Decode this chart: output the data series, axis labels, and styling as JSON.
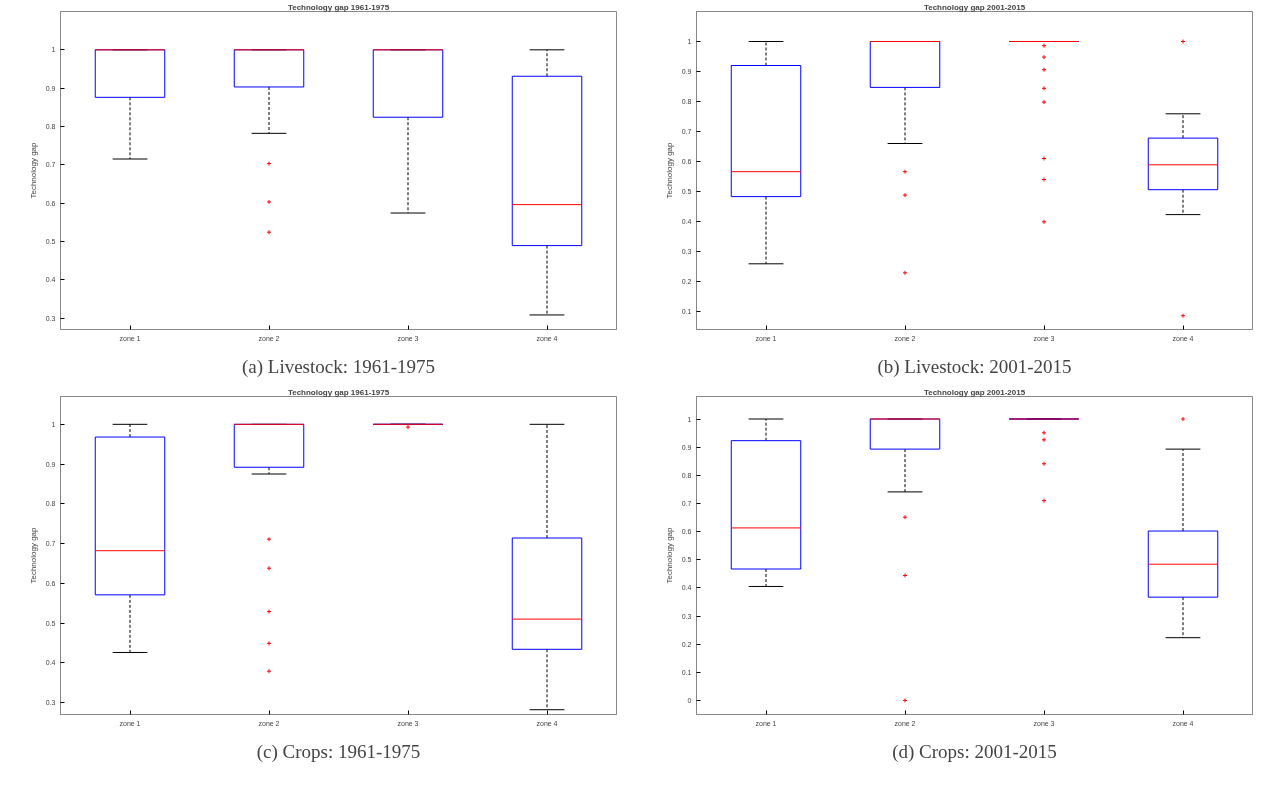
{
  "chart_data": [
    {
      "type": "box",
      "title": "Technology gap 1961-1975",
      "ylabel": "Technology gap",
      "categories": [
        "zone 1",
        "zone 2",
        "zone 3",
        "zone 4"
      ],
      "ylim": [
        0.27,
        1.1
      ],
      "yticks": [
        0.3,
        0.4,
        0.5,
        0.6,
        0.7,
        0.8,
        0.9,
        1
      ],
      "grid": false,
      "annotations": [
        "(a) Livestock: 1961-1975"
      ],
      "series": [
        {
          "color": "#0000ff",
          "boxes": [
            {
              "low": 0.715,
              "q1": 0.876,
              "median": 1,
              "q3": 1,
              "high": 1
            },
            {
              "low": 0.782,
              "q1": 0.903,
              "median": 1,
              "q3": 1,
              "high": 1,
              "outliers": [
                0.703,
                0.603,
                0.524
              ]
            },
            {
              "low": 0.574,
              "q1": 0.824,
              "median": 1,
              "q3": 1,
              "high": 1
            },
            {
              "low": 0.308,
              "q1": 0.489,
              "median": 0.596,
              "q3": 0.931,
              "high": 1
            }
          ]
        }
      ]
    },
    {
      "type": "box",
      "title": "Technology gap 2001-2015",
      "ylabel": "Technology gap",
      "categories": [
        "zone 1",
        "zone 2",
        "zone 3",
        "zone 4"
      ],
      "ylim": [
        0.04,
        1.1
      ],
      "yticks": [
        0.1,
        0.2,
        0.3,
        0.4,
        0.5,
        0.6,
        0.7,
        0.8,
        0.9,
        1
      ],
      "grid": false,
      "annotations": [
        "(b) Livestock: 2001-2015"
      ],
      "series": [
        {
          "color": "#0000ff",
          "boxes": [
            {
              "low": 0.259,
              "q1": 0.483,
              "median": 0.566,
              "q3": 0.92,
              "high": 1
            },
            {
              "low": 0.66,
              "q1": 0.847,
              "median": 1,
              "q3": 1,
              "high": 1,
              "outliers": [
                0.566,
                0.488,
                0.229
              ]
            },
            {
              "low": 1,
              "q1": 1,
              "median": 1,
              "q3": 1,
              "high": 1,
              "outliers": [
                0.986,
                0.948,
                0.906,
                0.844,
                0.798,
                0.61,
                0.54,
                0.399
              ]
            },
            {
              "low": 0.423,
              "q1": 0.506,
              "median": 0.589,
              "q3": 0.678,
              "high": 0.759,
              "outliers": [
                1,
                0.086
              ]
            }
          ]
        }
      ]
    },
    {
      "type": "box",
      "title": "Technology gap 1961-1975",
      "ylabel": "Technology gap",
      "categories": [
        "zone 1",
        "zone 2",
        "zone 3",
        "zone 4"
      ],
      "ylim": [
        0.27,
        1.07
      ],
      "yticks": [
        0.3,
        0.4,
        0.5,
        0.6,
        0.7,
        0.8,
        0.9,
        1
      ],
      "grid": false,
      "annotations": [
        "(c) Crops: 1961-1975"
      ],
      "series": [
        {
          "color": "#0000ff",
          "boxes": [
            {
              "low": 0.426,
              "q1": 0.571,
              "median": 0.682,
              "q3": 0.968,
              "high": 1
            },
            {
              "low": 0.875,
              "q1": 0.892,
              "median": 1,
              "q3": 1,
              "high": 1,
              "outliers": [
                0.711,
                0.638,
                0.529,
                0.449,
                0.379
              ]
            },
            {
              "low": 1,
              "q1": 1,
              "median": 1,
              "q3": 1,
              "high": 1,
              "outliers": [
                0.993
              ]
            },
            {
              "low": 0.282,
              "q1": 0.434,
              "median": 0.51,
              "q3": 0.714,
              "high": 1
            }
          ]
        }
      ]
    },
    {
      "type": "box",
      "title": "Technology gap 2001-2015",
      "ylabel": "Technology gap",
      "categories": [
        "zone 1",
        "zone 2",
        "zone 3",
        "zone 4"
      ],
      "ylim": [
        -0.05,
        1.08
      ],
      "yticks": [
        0,
        0.1,
        0.2,
        0.3,
        0.4,
        0.5,
        0.6,
        0.7,
        0.8,
        0.9,
        1
      ],
      "grid": false,
      "annotations": [
        "(d) Crops: 2001-2015"
      ],
      "series": [
        {
          "color": "#0000ff",
          "boxes": [
            {
              "low": 0.405,
              "q1": 0.467,
              "median": 0.613,
              "q3": 0.923,
              "high": 1
            },
            {
              "low": 0.741,
              "q1": 0.893,
              "median": 1,
              "q3": 1,
              "high": 1,
              "outliers": [
                0.651,
                0.444,
                0
              ]
            },
            {
              "low": 1,
              "q1": 1,
              "median": 1,
              "q3": 1,
              "high": 1,
              "outliers": [
                0.951,
                0.926,
                0.841,
                0.71
              ]
            },
            {
              "low": 0.223,
              "q1": 0.367,
              "median": 0.484,
              "q3": 0.602,
              "high": 0.893,
              "outliers": [
                1
              ]
            }
          ]
        }
      ]
    }
  ]
}
